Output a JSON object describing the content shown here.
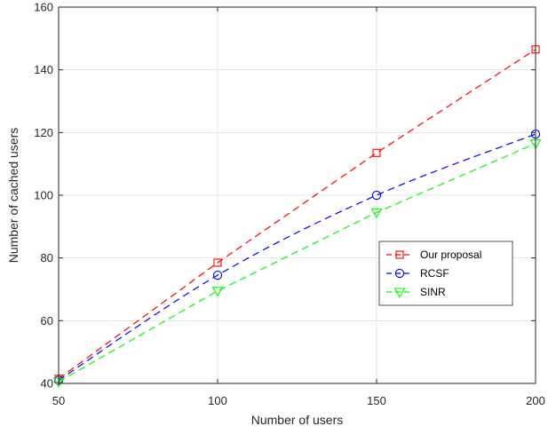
{
  "chart_data": {
    "type": "line",
    "xlabel": "Number of users",
    "ylabel": "Number of cached users",
    "x": [
      50,
      100,
      150,
      200
    ],
    "xlim": [
      50,
      200
    ],
    "ylim": [
      40,
      160
    ],
    "xticks": [
      "50",
      "100",
      "150",
      "200"
    ],
    "yticks": [
      "40",
      "60",
      "80",
      "100",
      "120",
      "140",
      "160"
    ],
    "grid": true,
    "legend_position": "right",
    "series": [
      {
        "name": "Our proposal",
        "values": [
          41.5,
          78.5,
          113.5,
          146.5
        ],
        "color": "#ff0000",
        "marker": "square",
        "line": "dashed"
      },
      {
        "name": "RCSF",
        "values": [
          41,
          74.5,
          100,
          119.5
        ],
        "color": "#0000ff",
        "marker": "circle",
        "line": "dashed",
        "curve": "smooth"
      },
      {
        "name": "SINR",
        "values": [
          40.5,
          69.5,
          94.5,
          116.5
        ],
        "color": "#00ff00",
        "marker": "triangle-down",
        "line": "dashed"
      }
    ]
  }
}
